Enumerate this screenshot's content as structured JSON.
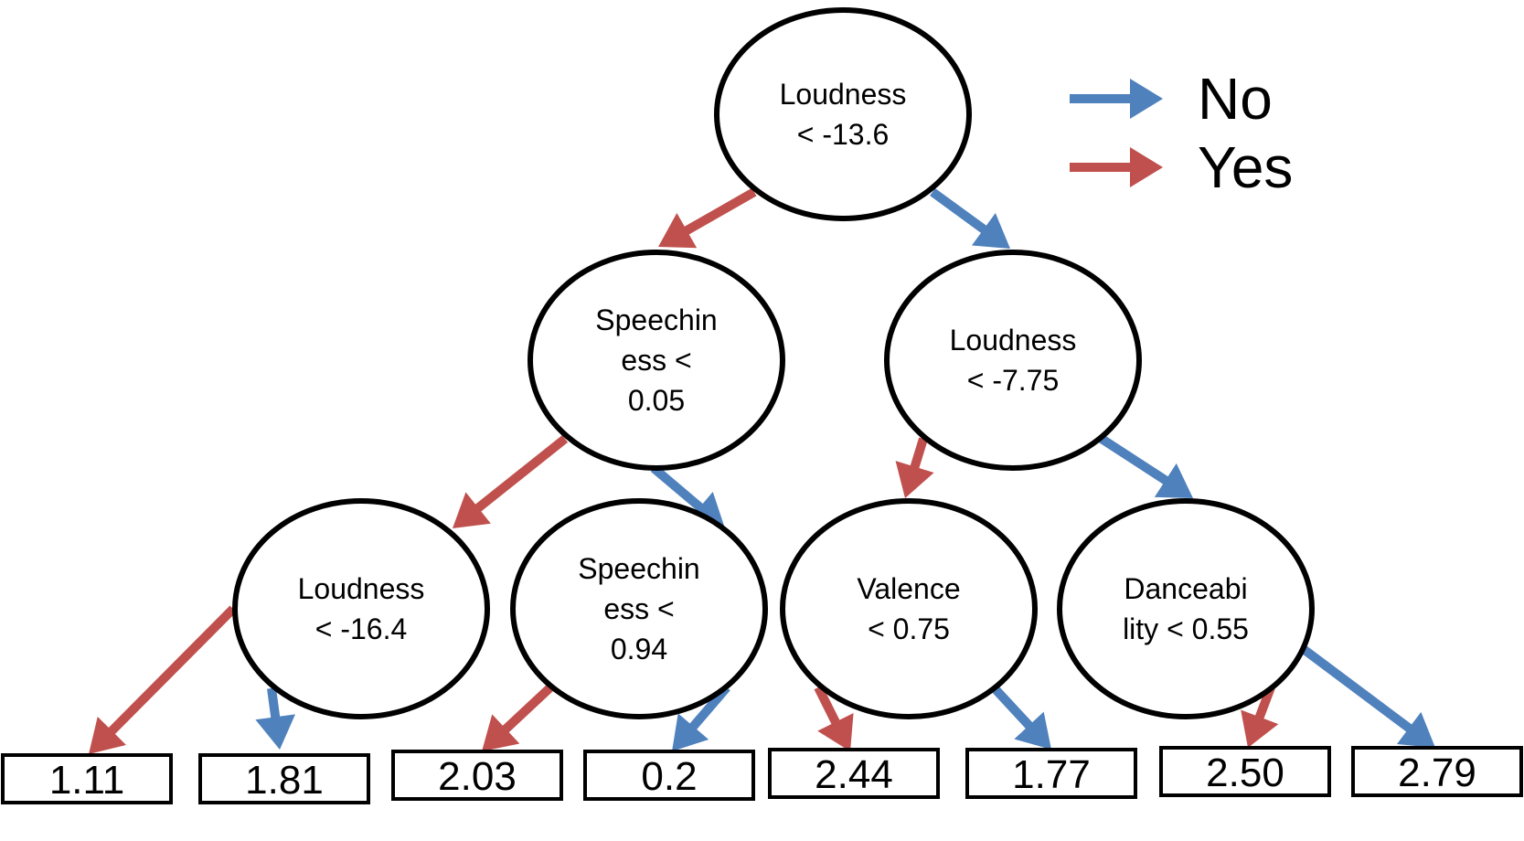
{
  "colors": {
    "yes": "#c0504d",
    "no": "#4f81bd",
    "outline": "#000000"
  },
  "legend": [
    {
      "key": "no",
      "label": "No"
    },
    {
      "key": "yes",
      "label": "Yes"
    }
  ],
  "nodes": [
    {
      "id": "root",
      "lines": [
        "Loudness",
        "< -13.6"
      ]
    },
    {
      "id": "n1",
      "lines": [
        "Speechin",
        "ess <",
        "0.05"
      ]
    },
    {
      "id": "n2",
      "lines": [
        "Loudness",
        "< -7.75"
      ]
    },
    {
      "id": "n3",
      "lines": [
        "Loudness",
        "< -16.4"
      ]
    },
    {
      "id": "n4",
      "lines": [
        "Speechin",
        "ess <",
        "0.94"
      ]
    },
    {
      "id": "n5",
      "lines": [
        "Valence",
        "< 0.75"
      ]
    },
    {
      "id": "n6",
      "lines": [
        "Danceabi",
        "lity < 0.55"
      ]
    }
  ],
  "leaves": [
    {
      "id": "l1",
      "value": "1.11"
    },
    {
      "id": "l2",
      "value": "1.81"
    },
    {
      "id": "l3",
      "value": "2.03"
    },
    {
      "id": "l4",
      "value": "0.2"
    },
    {
      "id": "l5",
      "value": "2.44"
    },
    {
      "id": "l6",
      "value": "1.77"
    },
    {
      "id": "l7",
      "value": "2.50"
    },
    {
      "id": "l8",
      "value": "2.79"
    }
  ],
  "edges": [
    {
      "from": "root",
      "to": "n1",
      "branch": "yes"
    },
    {
      "from": "root",
      "to": "n2",
      "branch": "no"
    },
    {
      "from": "n1",
      "to": "n3",
      "branch": "yes"
    },
    {
      "from": "n1",
      "to": "n4",
      "branch": "no"
    },
    {
      "from": "n2",
      "to": "n5",
      "branch": "yes"
    },
    {
      "from": "n2",
      "to": "n6",
      "branch": "no"
    },
    {
      "from": "n3",
      "to": "l1",
      "branch": "yes"
    },
    {
      "from": "n3",
      "to": "l2",
      "branch": "no"
    },
    {
      "from": "n4",
      "to": "l3",
      "branch": "yes"
    },
    {
      "from": "n4",
      "to": "l4",
      "branch": "no"
    },
    {
      "from": "n5",
      "to": "l5",
      "branch": "yes"
    },
    {
      "from": "n5",
      "to": "l6",
      "branch": "no"
    },
    {
      "from": "n6",
      "to": "l7",
      "branch": "yes"
    },
    {
      "from": "n6",
      "to": "l8",
      "branch": "no"
    }
  ]
}
